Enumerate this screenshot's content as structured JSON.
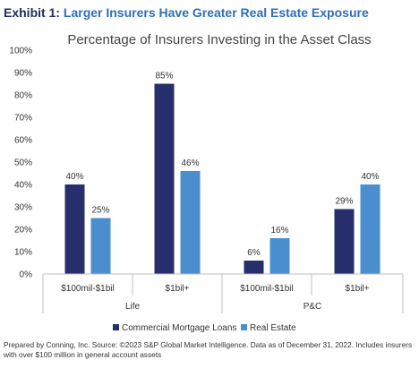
{
  "exhibit": {
    "label": "Exhibit 1:",
    "title": "Larger Insurers Have Greater Real Estate Exposure"
  },
  "footnote": "Prepared by Conning, Inc. Source: ©2023 S&P Global Market Intelligence. Data as of December 31, 2022. Includes insurers with over $100 million in general account assets",
  "chart_data": {
    "type": "bar",
    "title": "Percentage of Insurers Investing in the Asset Class",
    "xlabel": "",
    "ylabel": "",
    "ylim": [
      0,
      100
    ],
    "y_ticks": [
      "0%",
      "10%",
      "20%",
      "30%",
      "40%",
      "50%",
      "60%",
      "70%",
      "80%",
      "90%",
      "100%"
    ],
    "categories": [
      "$100mil-$1bil",
      "$1bil+",
      "$100mil-$1bil",
      "$1bil+"
    ],
    "groups": [
      "Life",
      "P&C"
    ],
    "series": [
      {
        "name": "Commercial Mortgage Loans",
        "values": [
          40,
          85,
          6,
          29
        ],
        "labels": [
          "40%",
          "85%",
          "6%",
          "29%"
        ]
      },
      {
        "name": "Real Estate",
        "values": [
          25,
          46,
          16,
          40
        ],
        "labels": [
          "25%",
          "46%",
          "16%",
          "40%"
        ]
      }
    ],
    "colors": {
      "Commercial Mortgage Loans": "#262f6b",
      "Real Estate": "#4a8ed0"
    },
    "grid": false,
    "legend_position": "bottom"
  }
}
